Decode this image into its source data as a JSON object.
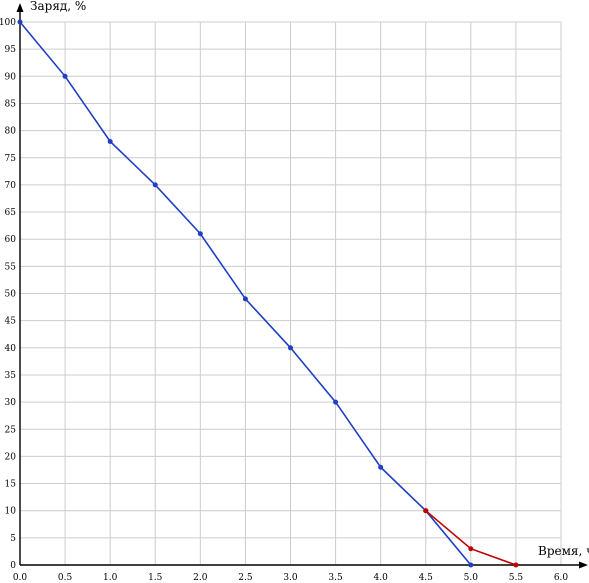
{
  "chart_data": {
    "type": "line",
    "xlabel": "Время, ч",
    "ylabel": "Заряд, %",
    "xlim": [
      0,
      6.0
    ],
    "ylim": [
      0,
      100
    ],
    "grid": true,
    "x_ticks": [
      "0.0",
      "0.5",
      "1.0",
      "1.5",
      "2.0",
      "2.5",
      "3.0",
      "3.5",
      "4.0",
      "4.5",
      "5.0",
      "5.5",
      "6.0"
    ],
    "y_ticks": [
      "0",
      "5",
      "10",
      "15",
      "20",
      "25",
      "30",
      "35",
      "40",
      "45",
      "50",
      "55",
      "60",
      "65",
      "70",
      "75",
      "80",
      "85",
      "90",
      "95",
      "100"
    ],
    "series": [
      {
        "color": "#1f3fc4",
        "x": [
          0,
          0.5,
          1.0,
          1.5,
          2.0,
          2.5,
          3.0,
          3.5,
          4.0,
          4.5,
          5.0
        ],
        "y": [
          100,
          90,
          78,
          70,
          61,
          49,
          40,
          30,
          18,
          10,
          0
        ]
      },
      {
        "color": "#c00000",
        "x": [
          4.5,
          5.0,
          5.5
        ],
        "y": [
          10,
          3,
          0
        ]
      }
    ]
  }
}
